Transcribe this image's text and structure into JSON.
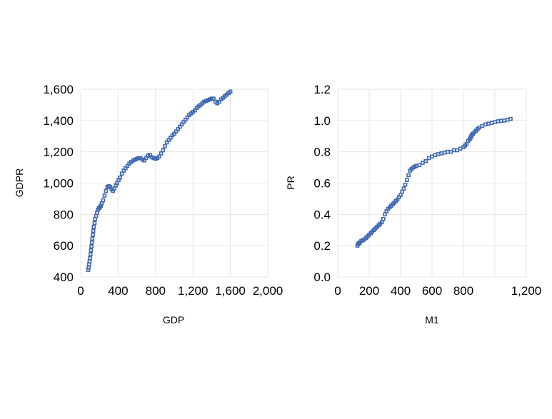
{
  "chart_data": [
    {
      "type": "scatter",
      "title": "",
      "xlabel": "GDP",
      "ylabel": "GDPR",
      "xlim": [
        0,
        2000
      ],
      "ylim": [
        400,
        1600
      ],
      "x_ticks": [
        0,
        400,
        800,
        1200,
        1600,
        2000
      ],
      "x_tick_labels": [
        "0",
        "400",
        "800",
        "1,200",
        "1,600",
        "2,000"
      ],
      "y_ticks": [
        400,
        600,
        800,
        1000,
        1200,
        1400,
        1600
      ],
      "y_tick_labels": [
        "400",
        "600",
        "800",
        "1,000",
        "1,200",
        "1,400",
        "1,600"
      ],
      "grid": true,
      "marker": "square-hollow",
      "color": "#4169b0",
      "series": [
        {
          "x": [
            80,
            85,
            90,
            95,
            100,
            105,
            110,
            115,
            120,
            125,
            130,
            135,
            140,
            148,
            155,
            165,
            175,
            185,
            195,
            205,
            215,
            225,
            240,
            255,
            270,
            285,
            300,
            315,
            330,
            345,
            360,
            375,
            390,
            405,
            420,
            440,
            460,
            480,
            500,
            520,
            540,
            560,
            580,
            600,
            620,
            640,
            660,
            680,
            700,
            720,
            740,
            760,
            780,
            800,
            820,
            840,
            860,
            880,
            900,
            920,
            940,
            960,
            980,
            1000,
            1020,
            1040,
            1060,
            1080,
            1100,
            1120,
            1140,
            1160,
            1180,
            1200,
            1220,
            1240,
            1260,
            1280,
            1300,
            1320,
            1340,
            1360,
            1380,
            1400,
            1420,
            1440,
            1460,
            1480,
            1500,
            1520,
            1540,
            1560,
            1580,
            1600
          ],
          "y": [
            445,
            460,
            480,
            500,
            520,
            545,
            570,
            595,
            620,
            645,
            670,
            695,
            720,
            745,
            770,
            790,
            810,
            830,
            840,
            845,
            855,
            870,
            890,
            920,
            950,
            975,
            980,
            975,
            960,
            950,
            965,
            985,
            1000,
            1020,
            1035,
            1060,
            1080,
            1095,
            1110,
            1125,
            1135,
            1145,
            1150,
            1155,
            1160,
            1160,
            1150,
            1145,
            1160,
            1175,
            1180,
            1165,
            1160,
            1155,
            1160,
            1170,
            1190,
            1210,
            1235,
            1260,
            1275,
            1290,
            1305,
            1315,
            1330,
            1345,
            1360,
            1375,
            1390,
            1405,
            1420,
            1435,
            1445,
            1455,
            1465,
            1480,
            1490,
            1500,
            1510,
            1520,
            1525,
            1530,
            1535,
            1540,
            1540,
            1520,
            1510,
            1520,
            1535,
            1545,
            1555,
            1565,
            1575,
            1585
          ]
        }
      ]
    },
    {
      "type": "scatter",
      "title": "",
      "xlabel": "M1",
      "ylabel": "PR",
      "xlim": [
        0,
        1200
      ],
      "ylim": [
        0.0,
        1.2
      ],
      "x_ticks": [
        0,
        200,
        400,
        600,
        800,
        1200
      ],
      "x_tick_labels": [
        "0",
        "200",
        "400",
        "600",
        "800",
        "1,200"
      ],
      "x_gridlines": [
        0,
        200,
        400,
        600,
        800,
        1000,
        1200
      ],
      "y_ticks": [
        0.0,
        0.2,
        0.4,
        0.6,
        0.8,
        1.0,
        1.2
      ],
      "y_tick_labels": [
        "0.0",
        "0.2",
        "0.4",
        "0.6",
        "0.8",
        "1.0",
        "1.2"
      ],
      "grid": true,
      "marker": "square-hollow",
      "color": "#4169b0",
      "series": [
        {
          "x": [
            125,
            130,
            135,
            140,
            150,
            160,
            170,
            180,
            190,
            200,
            210,
            220,
            230,
            240,
            250,
            260,
            270,
            280,
            290,
            300,
            310,
            320,
            330,
            340,
            350,
            360,
            370,
            380,
            390,
            400,
            410,
            420,
            430,
            440,
            450,
            460,
            470,
            480,
            490,
            500,
            520,
            540,
            560,
            580,
            600,
            620,
            640,
            660,
            680,
            700,
            720,
            740,
            760,
            780,
            800,
            810,
            820,
            830,
            840,
            845,
            850,
            855,
            860,
            870,
            880,
            890,
            900,
            920,
            940,
            960,
            980,
            1000,
            1020,
            1040,
            1060,
            1080,
            1100
          ],
          "y": [
            0.2,
            0.21,
            0.215,
            0.22,
            0.23,
            0.235,
            0.24,
            0.25,
            0.26,
            0.27,
            0.28,
            0.29,
            0.3,
            0.31,
            0.32,
            0.33,
            0.34,
            0.35,
            0.37,
            0.4,
            0.42,
            0.435,
            0.445,
            0.455,
            0.465,
            0.475,
            0.485,
            0.495,
            0.51,
            0.525,
            0.545,
            0.565,
            0.59,
            0.62,
            0.65,
            0.68,
            0.69,
            0.7,
            0.705,
            0.71,
            0.715,
            0.73,
            0.74,
            0.76,
            0.77,
            0.78,
            0.785,
            0.79,
            0.795,
            0.8,
            0.8,
            0.81,
            0.81,
            0.82,
            0.83,
            0.84,
            0.85,
            0.87,
            0.88,
            0.89,
            0.9,
            0.91,
            0.915,
            0.925,
            0.935,
            0.945,
            0.955,
            0.965,
            0.975,
            0.98,
            0.985,
            0.99,
            0.995,
            0.998,
            1.0,
            1.005,
            1.01
          ]
        }
      ]
    }
  ]
}
